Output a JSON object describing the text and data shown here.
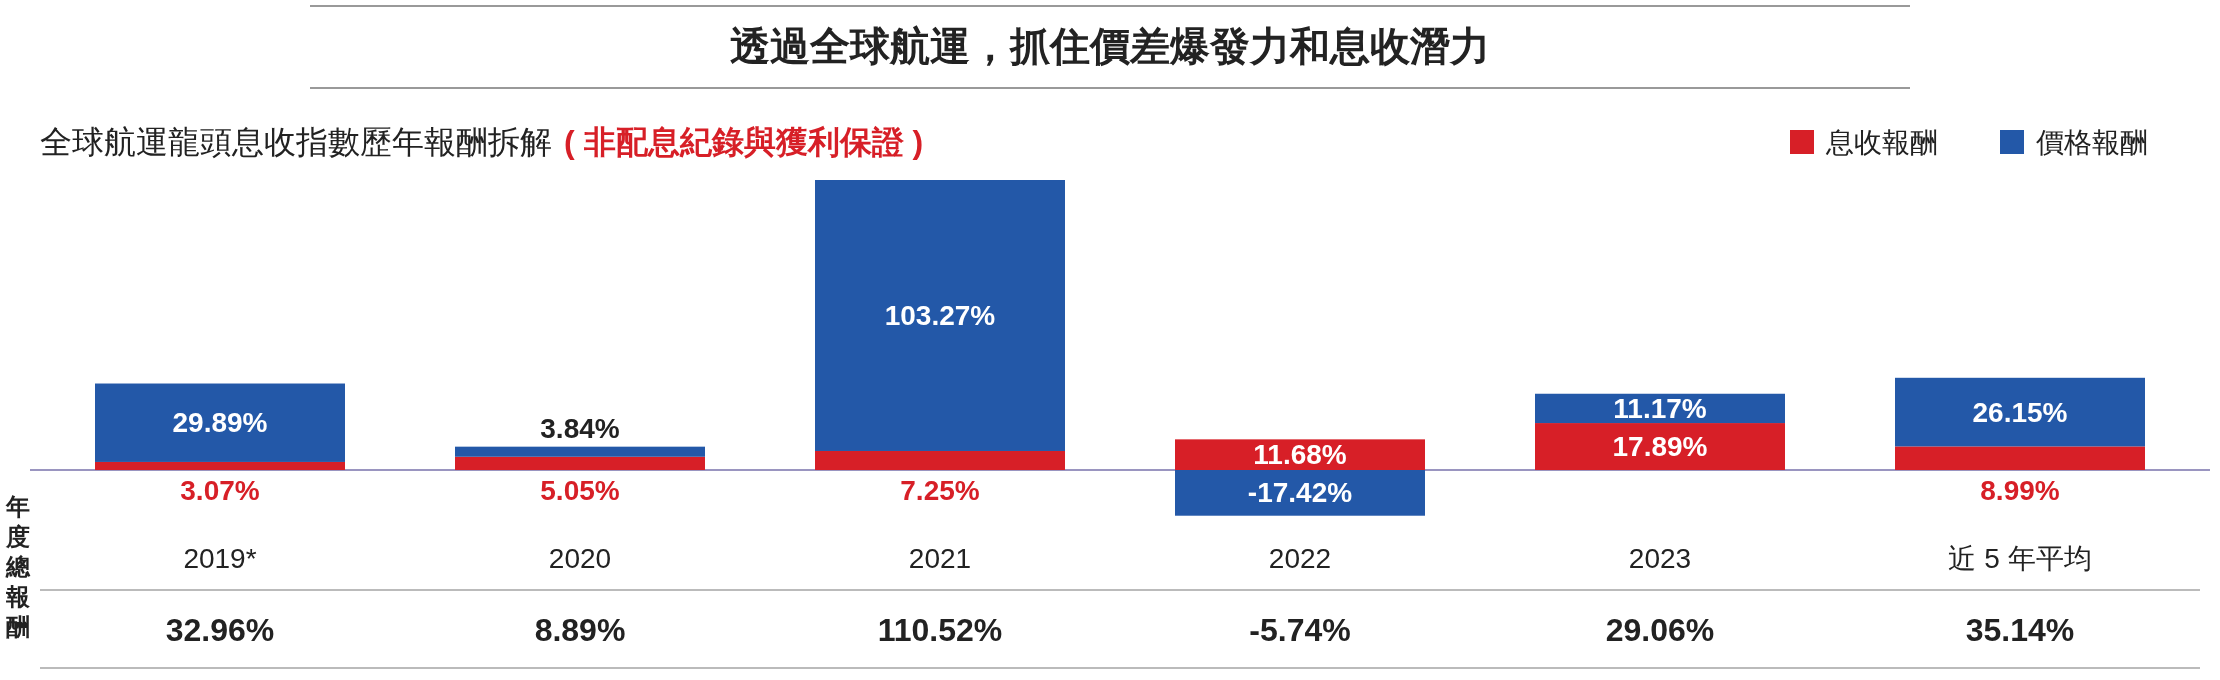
{
  "chart_data": {
    "type": "bar",
    "title": "透過全球航運，抓住價差爆發力和息收潛力",
    "subtitle": "全球航運龍頭息收指數歷年報酬拆解",
    "annotations": [
      "( 非配息紀錄與獲利保證 )",
      "年度總報酬",
      "32.96%",
      "8.89%",
      "110.52%",
      "-5.74%",
      "29.06%",
      "35.14%"
    ],
    "categories": [
      "2019*",
      "2020",
      "2021",
      "2022",
      "2023",
      "近 5 年平均"
    ],
    "stacked": true,
    "legend": "top right",
    "series": [
      {
        "name": "息收報酬",
        "color": "#d71f27",
        "values": [
          3.07,
          5.05,
          7.25,
          11.68,
          17.89,
          8.99
        ],
        "value_labels": [
          "3.07%",
          "5.05%",
          "7.25%",
          "11.68%",
          "17.89%",
          "8.99%"
        ]
      },
      {
        "name": "價格報酬",
        "color": "#2358a8",
        "values": [
          29.89,
          3.84,
          103.27,
          -17.42,
          11.17,
          26.15
        ],
        "value_labels": [
          "29.89%",
          "3.84%",
          "103.27%",
          "-17.42%",
          "11.17%",
          "26.15%"
        ]
      }
    ]
  }
}
